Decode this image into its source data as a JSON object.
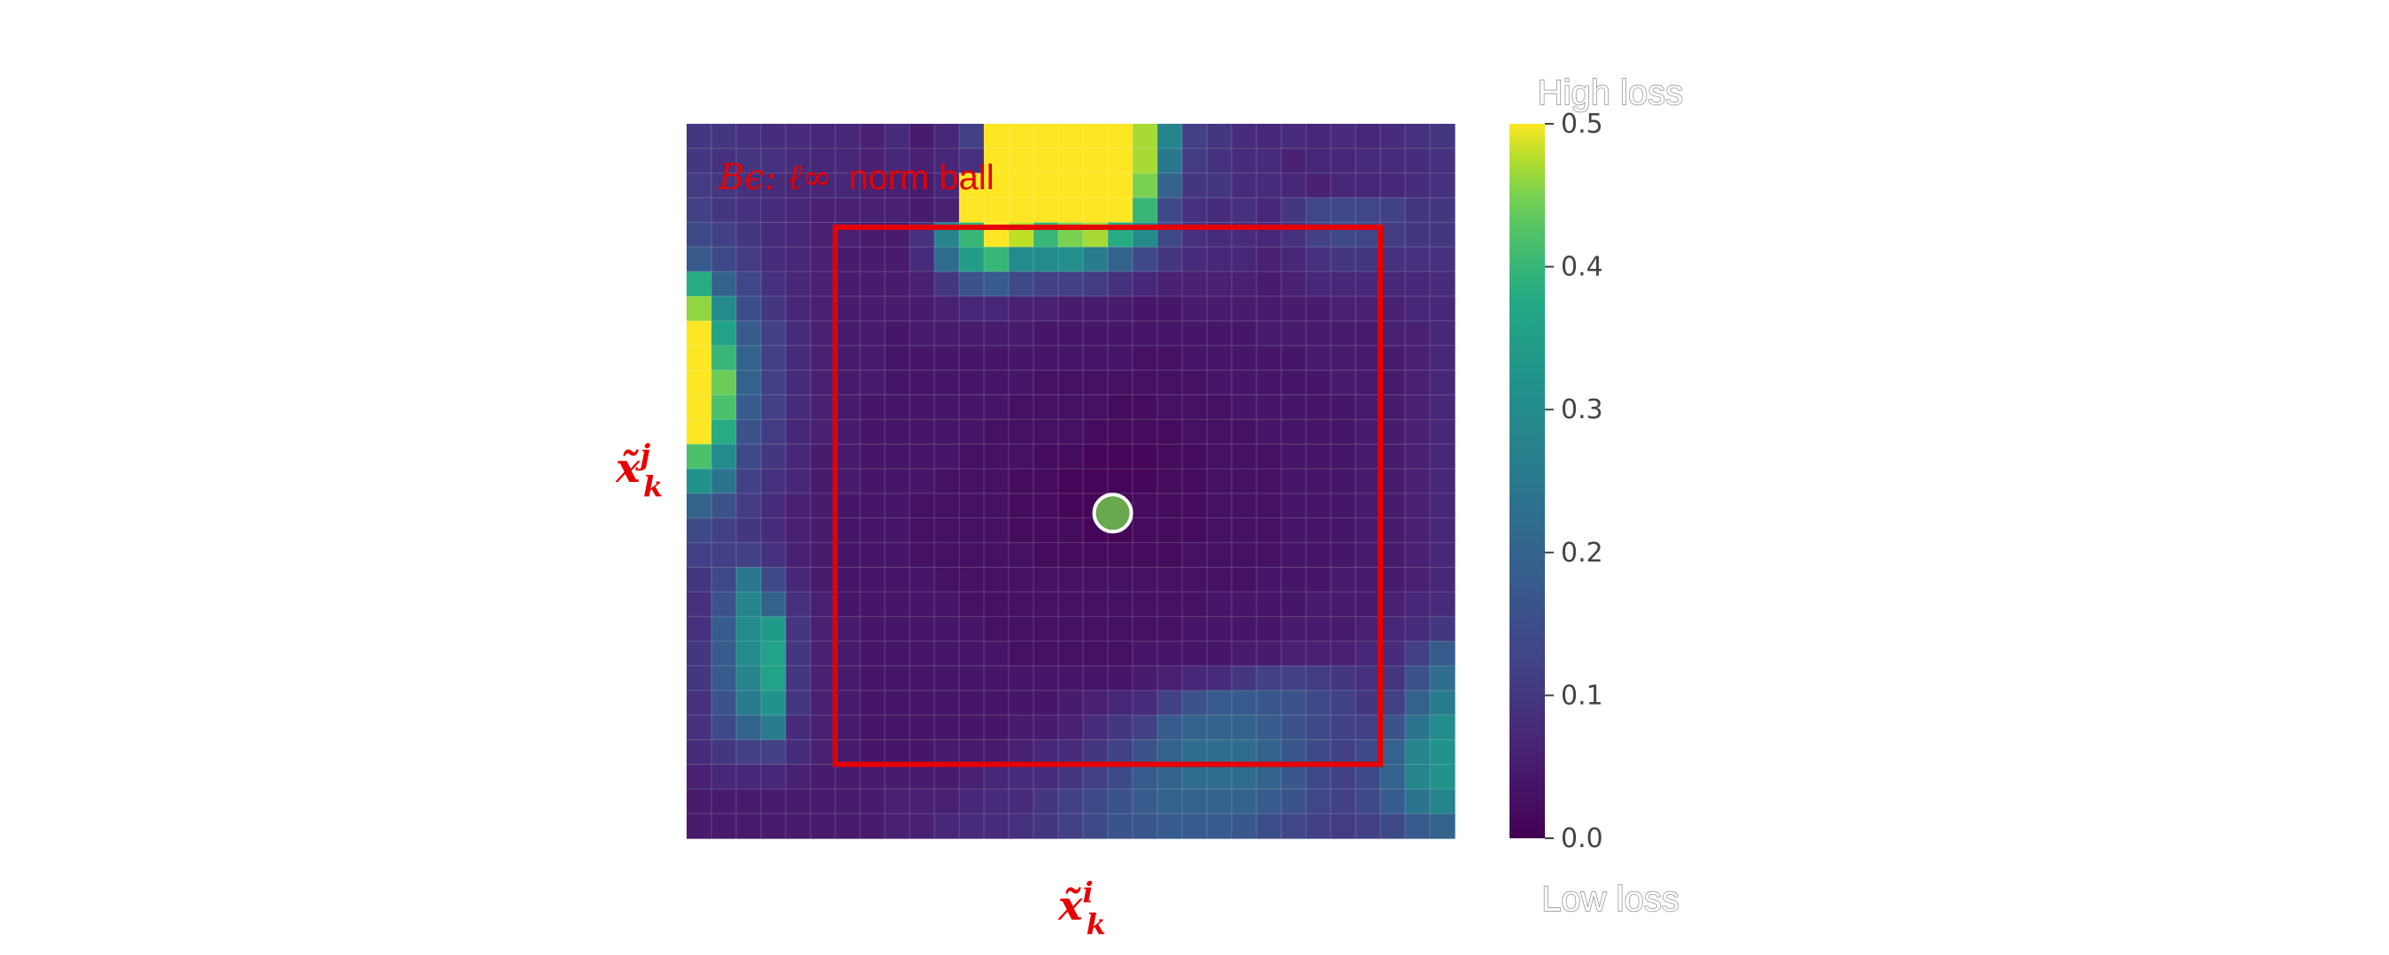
{
  "colors": {
    "box": "#e60000",
    "marker_fill": "#6aa84f",
    "marker_edge": "#ffffff",
    "annotation": "#e60000",
    "colormap": "viridis"
  },
  "chart_data": {
    "type": "heatmap",
    "title": "",
    "xlabel": "x̃ᵢ_k",
    "ylabel": "x̃ʲ_k",
    "xlabel_parts": {
      "base": "x̃",
      "sup": "i",
      "sub": "k"
    },
    "ylabel_parts": {
      "base": "x̃",
      "sup": "j",
      "sub": "k"
    },
    "rows": 29,
    "cols": 31,
    "grid": true,
    "colorbar": {
      "min": 0.0,
      "max": 0.5,
      "ticks": [
        0.0,
        0.1,
        0.2,
        0.3,
        0.4,
        0.5
      ],
      "tick_labels": [
        "0.0",
        "0.1",
        "0.2",
        "0.3",
        "0.4",
        "0.5"
      ],
      "top_label": "High loss",
      "bottom_label": "Low loss"
    },
    "annotation": {
      "math": "Bϵ: ℓ∞",
      "text": "norm ball"
    },
    "norm_ball": {
      "col_start": 6,
      "col_end": 28,
      "row_start": 4.2,
      "row_end": 26
    },
    "marker": {
      "col": 17.2,
      "row": 15.8,
      "label": ""
    },
    "values": [
      [
        0.1,
        0.1,
        0.09,
        0.08,
        0.08,
        0.07,
        0.07,
        0.06,
        0.08,
        0.05,
        0.07,
        0.12,
        0.5,
        0.5,
        0.5,
        0.5,
        0.5,
        0.5,
        0.47,
        0.28,
        0.12,
        0.1,
        0.08,
        0.07,
        0.08,
        0.07,
        0.08,
        0.07,
        0.08,
        0.09,
        0.1
      ],
      [
        0.1,
        0.09,
        0.1,
        0.09,
        0.08,
        0.07,
        0.07,
        0.06,
        0.07,
        0.06,
        0.07,
        0.09,
        0.5,
        0.5,
        0.5,
        0.5,
        0.5,
        0.5,
        0.47,
        0.25,
        0.11,
        0.09,
        0.08,
        0.08,
        0.06,
        0.07,
        0.07,
        0.08,
        0.08,
        0.08,
        0.09
      ],
      [
        0.11,
        0.1,
        0.09,
        0.08,
        0.07,
        0.07,
        0.07,
        0.06,
        0.06,
        0.05,
        0.07,
        0.5,
        0.5,
        0.5,
        0.5,
        0.5,
        0.5,
        0.5,
        0.45,
        0.2,
        0.1,
        0.1,
        0.08,
        0.08,
        0.07,
        0.06,
        0.07,
        0.07,
        0.07,
        0.08,
        0.09
      ],
      [
        0.12,
        0.1,
        0.09,
        0.08,
        0.07,
        0.06,
        0.06,
        0.06,
        0.06,
        0.05,
        0.06,
        0.5,
        0.5,
        0.5,
        0.5,
        0.5,
        0.5,
        0.5,
        0.4,
        0.14,
        0.09,
        0.08,
        0.09,
        0.07,
        0.1,
        0.13,
        0.14,
        0.13,
        0.12,
        0.1,
        0.1
      ],
      [
        0.14,
        0.12,
        0.1,
        0.08,
        0.07,
        0.06,
        0.06,
        0.05,
        0.05,
        0.09,
        0.28,
        0.4,
        0.5,
        0.48,
        0.4,
        0.45,
        0.47,
        0.38,
        0.3,
        0.14,
        0.09,
        0.08,
        0.08,
        0.07,
        0.09,
        0.12,
        0.14,
        0.13,
        0.11,
        0.1,
        0.1
      ],
      [
        0.18,
        0.14,
        0.11,
        0.08,
        0.07,
        0.06,
        0.05,
        0.05,
        0.05,
        0.08,
        0.22,
        0.35,
        0.4,
        0.3,
        0.3,
        0.31,
        0.26,
        0.2,
        0.14,
        0.1,
        0.08,
        0.07,
        0.07,
        0.06,
        0.07,
        0.09,
        0.1,
        0.1,
        0.09,
        0.09,
        0.09
      ],
      [
        0.38,
        0.2,
        0.13,
        0.09,
        0.07,
        0.06,
        0.05,
        0.05,
        0.05,
        0.06,
        0.1,
        0.16,
        0.18,
        0.14,
        0.12,
        0.12,
        0.11,
        0.09,
        0.07,
        0.06,
        0.06,
        0.06,
        0.06,
        0.05,
        0.06,
        0.07,
        0.07,
        0.07,
        0.07,
        0.07,
        0.08
      ],
      [
        0.46,
        0.3,
        0.15,
        0.1,
        0.07,
        0.06,
        0.05,
        0.05,
        0.05,
        0.05,
        0.06,
        0.07,
        0.07,
        0.06,
        0.06,
        0.05,
        0.05,
        0.05,
        0.04,
        0.04,
        0.05,
        0.05,
        0.05,
        0.05,
        0.05,
        0.05,
        0.06,
        0.06,
        0.06,
        0.07,
        0.07
      ],
      [
        0.5,
        0.36,
        0.18,
        0.12,
        0.08,
        0.06,
        0.05,
        0.05,
        0.04,
        0.05,
        0.05,
        0.05,
        0.05,
        0.05,
        0.04,
        0.04,
        0.04,
        0.04,
        0.04,
        0.04,
        0.04,
        0.04,
        0.04,
        0.05,
        0.05,
        0.05,
        0.05,
        0.05,
        0.06,
        0.06,
        0.07
      ],
      [
        0.5,
        0.4,
        0.2,
        0.12,
        0.08,
        0.06,
        0.05,
        0.05,
        0.04,
        0.04,
        0.04,
        0.04,
        0.04,
        0.04,
        0.04,
        0.04,
        0.04,
        0.04,
        0.03,
        0.03,
        0.04,
        0.04,
        0.04,
        0.04,
        0.04,
        0.05,
        0.05,
        0.05,
        0.05,
        0.06,
        0.07
      ],
      [
        0.5,
        0.44,
        0.2,
        0.12,
        0.08,
        0.06,
        0.05,
        0.05,
        0.04,
        0.04,
        0.04,
        0.04,
        0.04,
        0.04,
        0.03,
        0.03,
        0.03,
        0.03,
        0.03,
        0.03,
        0.03,
        0.04,
        0.04,
        0.04,
        0.04,
        0.04,
        0.05,
        0.05,
        0.05,
        0.06,
        0.07
      ],
      [
        0.5,
        0.42,
        0.18,
        0.12,
        0.08,
        0.06,
        0.05,
        0.04,
        0.04,
        0.04,
        0.04,
        0.04,
        0.04,
        0.03,
        0.03,
        0.03,
        0.03,
        0.02,
        0.02,
        0.03,
        0.03,
        0.03,
        0.04,
        0.04,
        0.04,
        0.04,
        0.04,
        0.05,
        0.05,
        0.06,
        0.07
      ],
      [
        0.5,
        0.38,
        0.16,
        0.11,
        0.07,
        0.06,
        0.05,
        0.04,
        0.04,
        0.04,
        0.04,
        0.04,
        0.03,
        0.03,
        0.03,
        0.03,
        0.02,
        0.02,
        0.02,
        0.02,
        0.03,
        0.03,
        0.03,
        0.04,
        0.04,
        0.04,
        0.04,
        0.05,
        0.05,
        0.06,
        0.07
      ],
      [
        0.42,
        0.3,
        0.14,
        0.1,
        0.07,
        0.05,
        0.05,
        0.04,
        0.04,
        0.04,
        0.04,
        0.03,
        0.03,
        0.03,
        0.02,
        0.02,
        0.01,
        0.01,
        0.01,
        0.02,
        0.02,
        0.03,
        0.03,
        0.03,
        0.04,
        0.04,
        0.04,
        0.05,
        0.05,
        0.06,
        0.07
      ],
      [
        0.32,
        0.24,
        0.12,
        0.09,
        0.07,
        0.05,
        0.05,
        0.04,
        0.04,
        0.04,
        0.03,
        0.03,
        0.03,
        0.02,
        0.02,
        0.01,
        0.01,
        0.01,
        0.01,
        0.02,
        0.02,
        0.03,
        0.03,
        0.03,
        0.04,
        0.04,
        0.04,
        0.05,
        0.05,
        0.06,
        0.07
      ],
      [
        0.2,
        0.16,
        0.11,
        0.08,
        0.06,
        0.05,
        0.04,
        0.04,
        0.04,
        0.03,
        0.03,
        0.03,
        0.03,
        0.02,
        0.02,
        0.01,
        0.01,
        0.01,
        0.02,
        0.02,
        0.02,
        0.03,
        0.03,
        0.03,
        0.04,
        0.04,
        0.04,
        0.05,
        0.05,
        0.06,
        0.07
      ],
      [
        0.14,
        0.12,
        0.1,
        0.08,
        0.06,
        0.05,
        0.04,
        0.04,
        0.04,
        0.03,
        0.03,
        0.03,
        0.03,
        0.02,
        0.02,
        0.02,
        0.01,
        0.01,
        0.02,
        0.02,
        0.02,
        0.03,
        0.03,
        0.03,
        0.04,
        0.04,
        0.04,
        0.05,
        0.05,
        0.06,
        0.07
      ],
      [
        0.12,
        0.12,
        0.12,
        0.09,
        0.06,
        0.05,
        0.04,
        0.04,
        0.04,
        0.03,
        0.03,
        0.03,
        0.03,
        0.03,
        0.02,
        0.02,
        0.02,
        0.02,
        0.02,
        0.02,
        0.03,
        0.03,
        0.03,
        0.03,
        0.04,
        0.04,
        0.04,
        0.05,
        0.05,
        0.06,
        0.07
      ],
      [
        0.1,
        0.14,
        0.25,
        0.14,
        0.07,
        0.05,
        0.04,
        0.04,
        0.04,
        0.04,
        0.03,
        0.03,
        0.03,
        0.03,
        0.03,
        0.03,
        0.03,
        0.03,
        0.03,
        0.03,
        0.03,
        0.03,
        0.03,
        0.04,
        0.04,
        0.04,
        0.05,
        0.05,
        0.05,
        0.06,
        0.07
      ],
      [
        0.09,
        0.16,
        0.28,
        0.2,
        0.09,
        0.06,
        0.04,
        0.04,
        0.04,
        0.04,
        0.04,
        0.03,
        0.03,
        0.03,
        0.03,
        0.03,
        0.03,
        0.03,
        0.03,
        0.03,
        0.03,
        0.04,
        0.04,
        0.04,
        0.04,
        0.05,
        0.05,
        0.05,
        0.06,
        0.07,
        0.08
      ],
      [
        0.09,
        0.18,
        0.3,
        0.34,
        0.1,
        0.06,
        0.05,
        0.04,
        0.04,
        0.04,
        0.04,
        0.04,
        0.03,
        0.03,
        0.03,
        0.03,
        0.03,
        0.03,
        0.03,
        0.03,
        0.04,
        0.04,
        0.04,
        0.04,
        0.05,
        0.05,
        0.05,
        0.06,
        0.07,
        0.08,
        0.1
      ],
      [
        0.1,
        0.18,
        0.3,
        0.36,
        0.1,
        0.06,
        0.05,
        0.04,
        0.04,
        0.04,
        0.04,
        0.04,
        0.04,
        0.03,
        0.03,
        0.03,
        0.03,
        0.03,
        0.04,
        0.04,
        0.04,
        0.04,
        0.05,
        0.05,
        0.06,
        0.06,
        0.06,
        0.07,
        0.08,
        0.12,
        0.18
      ],
      [
        0.1,
        0.18,
        0.28,
        0.36,
        0.1,
        0.06,
        0.05,
        0.04,
        0.04,
        0.04,
        0.04,
        0.04,
        0.04,
        0.04,
        0.04,
        0.04,
        0.04,
        0.04,
        0.05,
        0.06,
        0.07,
        0.08,
        0.1,
        0.12,
        0.12,
        0.11,
        0.1,
        0.09,
        0.1,
        0.16,
        0.22
      ],
      [
        0.09,
        0.16,
        0.26,
        0.32,
        0.1,
        0.06,
        0.05,
        0.04,
        0.04,
        0.04,
        0.04,
        0.04,
        0.04,
        0.04,
        0.04,
        0.05,
        0.06,
        0.07,
        0.08,
        0.12,
        0.16,
        0.18,
        0.18,
        0.17,
        0.16,
        0.14,
        0.12,
        0.1,
        0.12,
        0.2,
        0.26
      ],
      [
        0.09,
        0.14,
        0.2,
        0.26,
        0.08,
        0.06,
        0.05,
        0.04,
        0.04,
        0.04,
        0.04,
        0.04,
        0.04,
        0.05,
        0.05,
        0.06,
        0.08,
        0.1,
        0.12,
        0.18,
        0.2,
        0.2,
        0.2,
        0.18,
        0.16,
        0.14,
        0.12,
        0.12,
        0.16,
        0.24,
        0.3
      ],
      [
        0.08,
        0.1,
        0.12,
        0.12,
        0.08,
        0.06,
        0.05,
        0.04,
        0.04,
        0.04,
        0.05,
        0.05,
        0.05,
        0.06,
        0.07,
        0.08,
        0.1,
        0.12,
        0.16,
        0.2,
        0.22,
        0.22,
        0.22,
        0.2,
        0.17,
        0.14,
        0.12,
        0.14,
        0.2,
        0.28,
        0.32
      ],
      [
        0.06,
        0.07,
        0.07,
        0.07,
        0.06,
        0.05,
        0.05,
        0.05,
        0.05,
        0.05,
        0.05,
        0.06,
        0.07,
        0.08,
        0.08,
        0.1,
        0.12,
        0.14,
        0.18,
        0.2,
        0.22,
        0.22,
        0.22,
        0.2,
        0.17,
        0.14,
        0.12,
        0.14,
        0.2,
        0.28,
        0.32
      ],
      [
        0.05,
        0.05,
        0.05,
        0.05,
        0.05,
        0.05,
        0.05,
        0.05,
        0.06,
        0.06,
        0.06,
        0.07,
        0.08,
        0.08,
        0.1,
        0.12,
        0.14,
        0.16,
        0.18,
        0.2,
        0.2,
        0.2,
        0.2,
        0.18,
        0.16,
        0.13,
        0.12,
        0.14,
        0.18,
        0.24,
        0.28
      ],
      [
        0.05,
        0.05,
        0.05,
        0.05,
        0.05,
        0.05,
        0.05,
        0.05,
        0.06,
        0.06,
        0.07,
        0.08,
        0.08,
        0.09,
        0.1,
        0.12,
        0.14,
        0.16,
        0.17,
        0.18,
        0.18,
        0.18,
        0.17,
        0.15,
        0.13,
        0.12,
        0.11,
        0.12,
        0.14,
        0.18,
        0.2
      ]
    ]
  }
}
